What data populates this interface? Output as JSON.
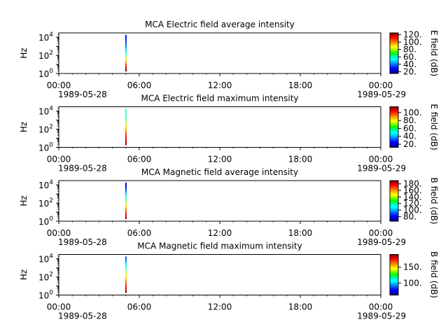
{
  "chart_data": [
    {
      "type": "heatmap",
      "title": "MCA  Electric field average intensity",
      "ylabel": "Hz",
      "yscale": "log",
      "ylim": [
        1,
        30000
      ],
      "ytick_labels": [
        {
          "base": "10",
          "exp": "0",
          "value": 1
        },
        {
          "base": "10",
          "exp": "2",
          "value": 100
        },
        {
          "base": "10",
          "exp": "4",
          "value": 10000
        }
      ],
      "xlim": [
        "1989-05-28 00:00",
        "1989-05-29 00:00"
      ],
      "xtick_labels": [
        "00:00",
        "06:00",
        "12:00",
        "18:00",
        "00:00"
      ],
      "xtick_hours": [
        0,
        6,
        12,
        18,
        24
      ],
      "date_labels": [
        "1989-05-28",
        "1989-05-29"
      ],
      "colorbar": {
        "label": "E field (dB)",
        "range": [
          15,
          125
        ],
        "ticks": [
          20,
          40,
          60,
          80,
          100,
          120
        ],
        "tick_labels": [
          "20.",
          "40.",
          "60.",
          "80.",
          "100.",
          "120."
        ]
      },
      "data": {
        "time_hours": 4.95,
        "freq_range_hz": [
          1.8,
          18000
        ],
        "values_db": [
          125,
          115,
          105,
          95,
          85,
          75,
          65,
          58,
          52,
          46,
          40,
          35,
          32,
          30
        ]
      }
    },
    {
      "type": "heatmap",
      "title": "MCA  Electric field maximum intensity",
      "ylabel": "Hz",
      "yscale": "log",
      "ylim": [
        1,
        30000
      ],
      "ytick_labels": [
        {
          "base": "10",
          "exp": "0",
          "value": 1
        },
        {
          "base": "10",
          "exp": "2",
          "value": 100
        },
        {
          "base": "10",
          "exp": "4",
          "value": 10000
        }
      ],
      "xlim": [
        "1989-05-28 00:00",
        "1989-05-29 00:00"
      ],
      "xtick_labels": [
        "00:00",
        "06:00",
        "12:00",
        "18:00",
        "00:00"
      ],
      "xtick_hours": [
        0,
        6,
        12,
        18,
        24
      ],
      "date_labels": [
        "1989-05-28",
        "1989-05-29"
      ],
      "colorbar": {
        "label": "E field (dB)",
        "range": [
          12,
          115
        ],
        "ticks": [
          20,
          40,
          60,
          80,
          100
        ],
        "tick_labels": [
          "20.",
          "40.",
          "60.",
          "80.",
          "100."
        ]
      },
      "data": {
        "time_hours": 4.95,
        "freq_range_hz": [
          1.8,
          18000
        ],
        "values_db": [
          112,
          108,
          104,
          100,
          94,
          88,
          82,
          76,
          70,
          64,
          60,
          58,
          56,
          55
        ]
      }
    },
    {
      "type": "heatmap",
      "title": "MCA  Magnetic field average intensity",
      "ylabel": "Hz",
      "yscale": "log",
      "ylim": [
        1,
        30000
      ],
      "ytick_labels": [
        {
          "base": "10",
          "exp": "0",
          "value": 1
        },
        {
          "base": "10",
          "exp": "2",
          "value": 100
        },
        {
          "base": "10",
          "exp": "4",
          "value": 10000
        }
      ],
      "xlim": [
        "1989-05-28 00:00",
        "1989-05-29 00:00"
      ],
      "xtick_labels": [
        "00:00",
        "06:00",
        "12:00",
        "18:00",
        "00:00"
      ],
      "xtick_hours": [
        0,
        6,
        12,
        18,
        24
      ],
      "date_labels": [
        "1989-05-28",
        "1989-05-29"
      ],
      "colorbar": {
        "label": "B field (dB)",
        "range": [
          66,
          190
        ],
        "ticks": [
          80,
          100,
          120,
          140,
          160,
          180
        ],
        "tick_labels": [
          "80.",
          "100.",
          "120.",
          "140.",
          "160.",
          "180."
        ]
      },
      "data": {
        "time_hours": 4.95,
        "freq_range_hz": [
          1.8,
          18000
        ],
        "values_db": [
          185,
          178,
          170,
          162,
          152,
          142,
          132,
          124,
          118,
          110,
          100,
          88,
          78,
          70
        ]
      }
    },
    {
      "type": "heatmap",
      "title": "MCA  Magnetic field maximum intensity",
      "ylabel": "Hz",
      "yscale": "log",
      "ylim": [
        1,
        30000
      ],
      "ytick_labels": [
        {
          "base": "10",
          "exp": "0",
          "value": 1
        },
        {
          "base": "10",
          "exp": "2",
          "value": 100
        },
        {
          "base": "10",
          "exp": "4",
          "value": 10000
        }
      ],
      "xlim": [
        "1989-05-28 00:00",
        "1989-05-29 00:00"
      ],
      "xtick_labels": [
        "00:00",
        "06:00",
        "12:00",
        "18:00",
        "00:00"
      ],
      "xtick_hours": [
        0,
        6,
        12,
        18,
        24
      ],
      "date_labels": [
        "1989-05-28",
        "1989-05-29"
      ],
      "colorbar": {
        "label": "B field (dB)",
        "range": [
          62,
          190
        ],
        "ticks": [
          100,
          150
        ],
        "tick_labels": [
          "100.",
          "150."
        ]
      },
      "data": {
        "time_hours": 4.95,
        "freq_range_hz": [
          1.8,
          18000
        ],
        "values_db": [
          188,
          180,
          172,
          165,
          158,
          150,
          142,
          135,
          128,
          120,
          112,
          104,
          96,
          88
        ]
      }
    }
  ]
}
